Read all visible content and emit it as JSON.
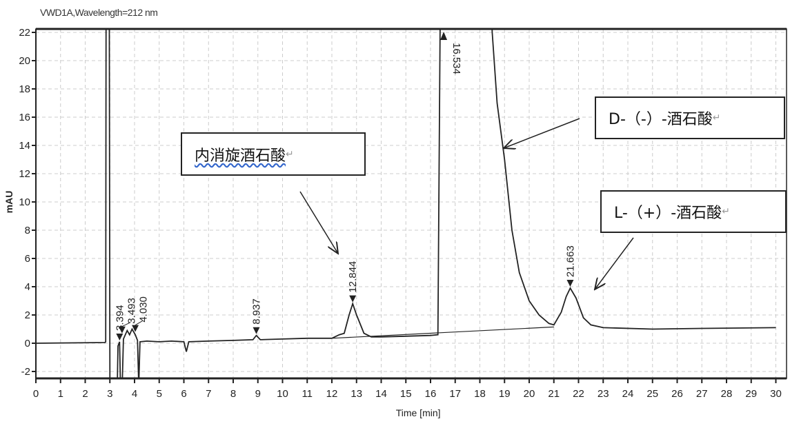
{
  "chart_data": {
    "type": "line",
    "title": "VWD1A,Wavelength=212 nm",
    "xlabel": "Time [min]",
    "ylabel": "mAU",
    "xlim": [
      0,
      30.5
    ],
    "ylim": [
      -2.5,
      22.2
    ],
    "xticks": [
      0,
      1,
      2,
      3,
      4,
      5,
      6,
      7,
      8,
      9,
      10,
      11,
      12,
      13,
      14,
      15,
      16,
      17,
      18,
      19,
      20,
      21,
      22,
      23,
      24,
      25,
      26,
      27,
      28,
      29,
      30
    ],
    "yticks": [
      -2,
      0,
      2,
      4,
      6,
      8,
      10,
      12,
      14,
      16,
      18,
      20,
      22
    ],
    "grid": true,
    "line_color": "#222222",
    "series": [
      {
        "points": [
          [
            0,
            0
          ],
          [
            2.8,
            0.05
          ],
          [
            2.83,
            0.1
          ],
          [
            2.85,
            30
          ],
          [
            2.97,
            30
          ],
          [
            3.0,
            -3
          ],
          [
            3.3,
            -3
          ],
          [
            3.33,
            -0.2
          ],
          [
            3.394,
            0.1
          ],
          [
            3.43,
            -3
          ],
          [
            3.5,
            -3
          ],
          [
            3.55,
            0.3
          ],
          [
            3.7,
            0.9
          ],
          [
            3.8,
            0.6
          ],
          [
            3.9,
            1.0
          ],
          [
            4.03,
            0.6
          ],
          [
            4.12,
            0.2
          ],
          [
            4.17,
            -3
          ],
          [
            4.22,
            0.1
          ],
          [
            4.5,
            0.15
          ],
          [
            5,
            0.1
          ],
          [
            5.5,
            0.15
          ],
          [
            6.0,
            0.1
          ],
          [
            6.1,
            -0.6
          ],
          [
            6.2,
            0.1
          ],
          [
            7,
            0.15
          ],
          [
            8,
            0.2
          ],
          [
            8.8,
            0.25
          ],
          [
            8.937,
            0.55
          ],
          [
            9.1,
            0.25
          ],
          [
            10,
            0.3
          ],
          [
            11,
            0.35
          ],
          [
            12,
            0.35
          ],
          [
            12.3,
            0.6
          ],
          [
            12.5,
            0.7
          ],
          [
            12.7,
            2.0
          ],
          [
            12.844,
            2.8
          ],
          [
            13.0,
            2.0
          ],
          [
            13.3,
            0.7
          ],
          [
            13.6,
            0.45
          ],
          [
            14,
            0.45
          ],
          [
            15,
            0.5
          ],
          [
            16,
            0.55
          ],
          [
            16.3,
            0.6
          ],
          [
            16.42,
            30
          ],
          [
            18.35,
            30
          ],
          [
            18.5,
            22
          ],
          [
            18.7,
            17
          ],
          [
            19,
            13
          ],
          [
            19.3,
            8
          ],
          [
            19.6,
            5
          ],
          [
            20,
            3
          ],
          [
            20.4,
            2
          ],
          [
            20.8,
            1.4
          ],
          [
            21.0,
            1.3
          ],
          [
            21.3,
            2.2
          ],
          [
            21.5,
            3.3
          ],
          [
            21.663,
            3.9
          ],
          [
            21.9,
            3.2
          ],
          [
            22.2,
            1.8
          ],
          [
            22.5,
            1.3
          ],
          [
            23,
            1.1
          ],
          [
            25,
            1.0
          ],
          [
            27,
            1.05
          ],
          [
            30,
            1.1
          ]
        ]
      },
      {
        "points": [
          [
            12.0,
            0.35
          ],
          [
            21.0,
            1.15
          ]
        ]
      }
    ],
    "peaks": [
      {
        "time": 3.394,
        "label": "3.394",
        "height": 0.1
      },
      {
        "time": 3.493,
        "label": "3.493",
        "height": 0.6
      },
      {
        "time": 4.03,
        "label": "4.030",
        "height": 0.7
      },
      {
        "time": 8.937,
        "label": "8.937",
        "height": 0.55
      },
      {
        "time": 12.844,
        "label": "12.844",
        "height": 2.8
      },
      {
        "time": 16.534,
        "label": "16.534",
        "height": 22.2,
        "off_scale": true
      },
      {
        "time": 21.663,
        "label": "21.663",
        "height": 3.9
      }
    ],
    "annotations": [
      {
        "text": "内消旋酒石酸",
        "target_time": 12.844
      },
      {
        "text": "D-（-）-酒石酸",
        "target_time": 16.534
      },
      {
        "text": "L-（+）-酒石酸",
        "target_time": 21.663
      }
    ],
    "return_mark": "↵"
  }
}
